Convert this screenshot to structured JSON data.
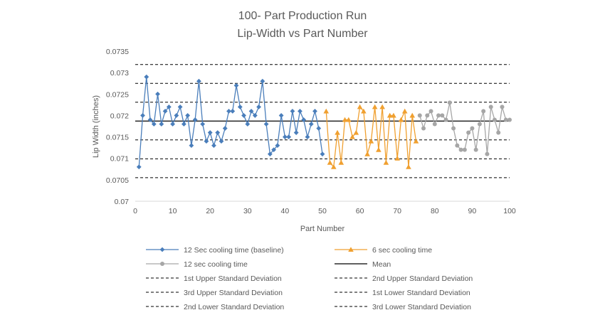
{
  "chart_data": {
    "type": "line",
    "title_line1": "100- Part Production Run",
    "title_line2": "Lip-Width vs Part Number",
    "xlabel": "Part Number",
    "ylabel": "Lip  Width (inches)",
    "xlim": [
      0,
      100
    ],
    "ylim": [
      0.07,
      0.0735
    ],
    "x_ticks": [
      "0",
      "10",
      "20",
      "30",
      "40",
      "50",
      "60",
      "70",
      "80",
      "90",
      "100"
    ],
    "y_ticks": [
      "0.07",
      "0.0705",
      "0.071",
      "0.0715",
      "0.072",
      "0.0725",
      "0.073",
      "0.0735"
    ],
    "grid": false,
    "legend_position": "bottom",
    "series": [
      {
        "name": "12 Sec cooling time (baseline)",
        "color": "#4a7ebb",
        "marker": "diamond",
        "x": [
          1,
          2,
          3,
          4,
          5,
          6,
          7,
          8,
          9,
          10,
          11,
          12,
          13,
          14,
          15,
          16,
          17,
          18,
          19,
          20,
          21,
          22,
          23,
          24,
          25,
          26,
          27,
          28,
          29,
          30,
          31,
          32,
          33,
          34,
          35,
          36,
          37,
          38,
          39,
          40,
          41,
          42,
          43,
          44,
          45,
          46,
          47,
          48,
          49,
          50
        ],
        "values": [
          0.0708,
          0.072,
          0.0729,
          0.0719,
          0.0718,
          0.0725,
          0.0718,
          0.0721,
          0.0722,
          0.0718,
          0.072,
          0.0722,
          0.0718,
          0.072,
          0.0713,
          0.0719,
          0.0728,
          0.0718,
          0.0714,
          0.0716,
          0.0713,
          0.0716,
          0.0714,
          0.0717,
          0.0721,
          0.0721,
          0.0727,
          0.0722,
          0.072,
          0.0718,
          0.0721,
          0.072,
          0.0722,
          0.0728,
          0.0718,
          0.0711,
          0.0712,
          0.0713,
          0.072,
          0.0715,
          0.0715,
          0.0721,
          0.0716,
          0.0721,
          0.0719,
          0.0715,
          0.0718,
          0.0721,
          0.0717,
          0.0711
        ]
      },
      {
        "name": "6 sec cooling time",
        "color": "#f0a030",
        "marker": "triangle",
        "x": [
          51,
          52,
          53,
          54,
          55,
          56,
          57,
          58,
          59,
          60,
          61,
          62,
          63,
          64,
          65,
          66,
          67,
          68,
          69,
          70,
          71,
          72,
          73,
          74,
          75
        ],
        "values": [
          0.0721,
          0.0709,
          0.0708,
          0.0716,
          0.0709,
          0.0719,
          0.0719,
          0.0715,
          0.0716,
          0.0722,
          0.0721,
          0.0711,
          0.0714,
          0.0722,
          0.0712,
          0.0722,
          0.0709,
          0.072,
          0.072,
          0.071,
          0.0719,
          0.0721,
          0.0708,
          0.072,
          0.0714
        ]
      },
      {
        "name": "12 sec cooling time",
        "color": "#a6a6a6",
        "marker": "circle",
        "x": [
          76,
          77,
          78,
          79,
          80,
          81,
          82,
          83,
          84,
          85,
          86,
          87,
          88,
          89,
          90,
          91,
          92,
          93,
          94,
          95,
          96,
          97,
          98,
          99,
          100
        ],
        "values": [
          0.072,
          0.0717,
          0.072,
          0.0721,
          0.0718,
          0.072,
          0.072,
          0.0719,
          0.0723,
          0.0717,
          0.0713,
          0.0712,
          0.0712,
          0.0716,
          0.0717,
          0.0712,
          0.0718,
          0.0721,
          0.0711,
          0.0722,
          0.0719,
          0.0716,
          0.0722,
          0.0719,
          0.0719
        ]
      }
    ],
    "reference_lines": [
      {
        "name": "Mean",
        "value": 0.07187,
        "style": "solid",
        "color": "#000000"
      },
      {
        "name": "1st Upper Standard Deviation",
        "value": 0.07231,
        "style": "dashed",
        "color": "#000000"
      },
      {
        "name": "2nd Upper Standard Deviation",
        "value": 0.07275,
        "style": "dashed",
        "color": "#000000"
      },
      {
        "name": "3rd Upper Standard Deviation",
        "value": 0.07319,
        "style": "dashed",
        "color": "#000000"
      },
      {
        "name": "1st Lower Standard Deviation",
        "value": 0.07143,
        "style": "dashed",
        "color": "#000000"
      },
      {
        "name": "2nd Lower Standard Deviation",
        "value": 0.07099,
        "style": "dashed",
        "color": "#000000"
      },
      {
        "name": "3rd Lower Standard Deviation",
        "value": 0.07055,
        "style": "dashed",
        "color": "#000000"
      }
    ],
    "legend": [
      {
        "label": "12 Sec cooling time (baseline)",
        "kind": "series",
        "index": 0
      },
      {
        "label": "6 sec cooling time",
        "kind": "series",
        "index": 1
      },
      {
        "label": "12 sec cooling time",
        "kind": "series",
        "index": 2
      },
      {
        "label": "Mean",
        "kind": "line",
        "index": 0
      },
      {
        "label": "1st Upper Standard Deviation",
        "kind": "line",
        "index": 1
      },
      {
        "label": "2nd Upper Standard Deviation",
        "kind": "line",
        "index": 2
      },
      {
        "label": "3rd Upper Standard Deviation",
        "kind": "line",
        "index": 3
      },
      {
        "label": "1st Lower Standard Deviation",
        "kind": "line",
        "index": 4
      },
      {
        "label": "2nd Lower Standard Deviation",
        "kind": "line",
        "index": 5
      },
      {
        "label": "3rd Lower Standard Deviation",
        "kind": "line",
        "index": 6
      }
    ]
  }
}
